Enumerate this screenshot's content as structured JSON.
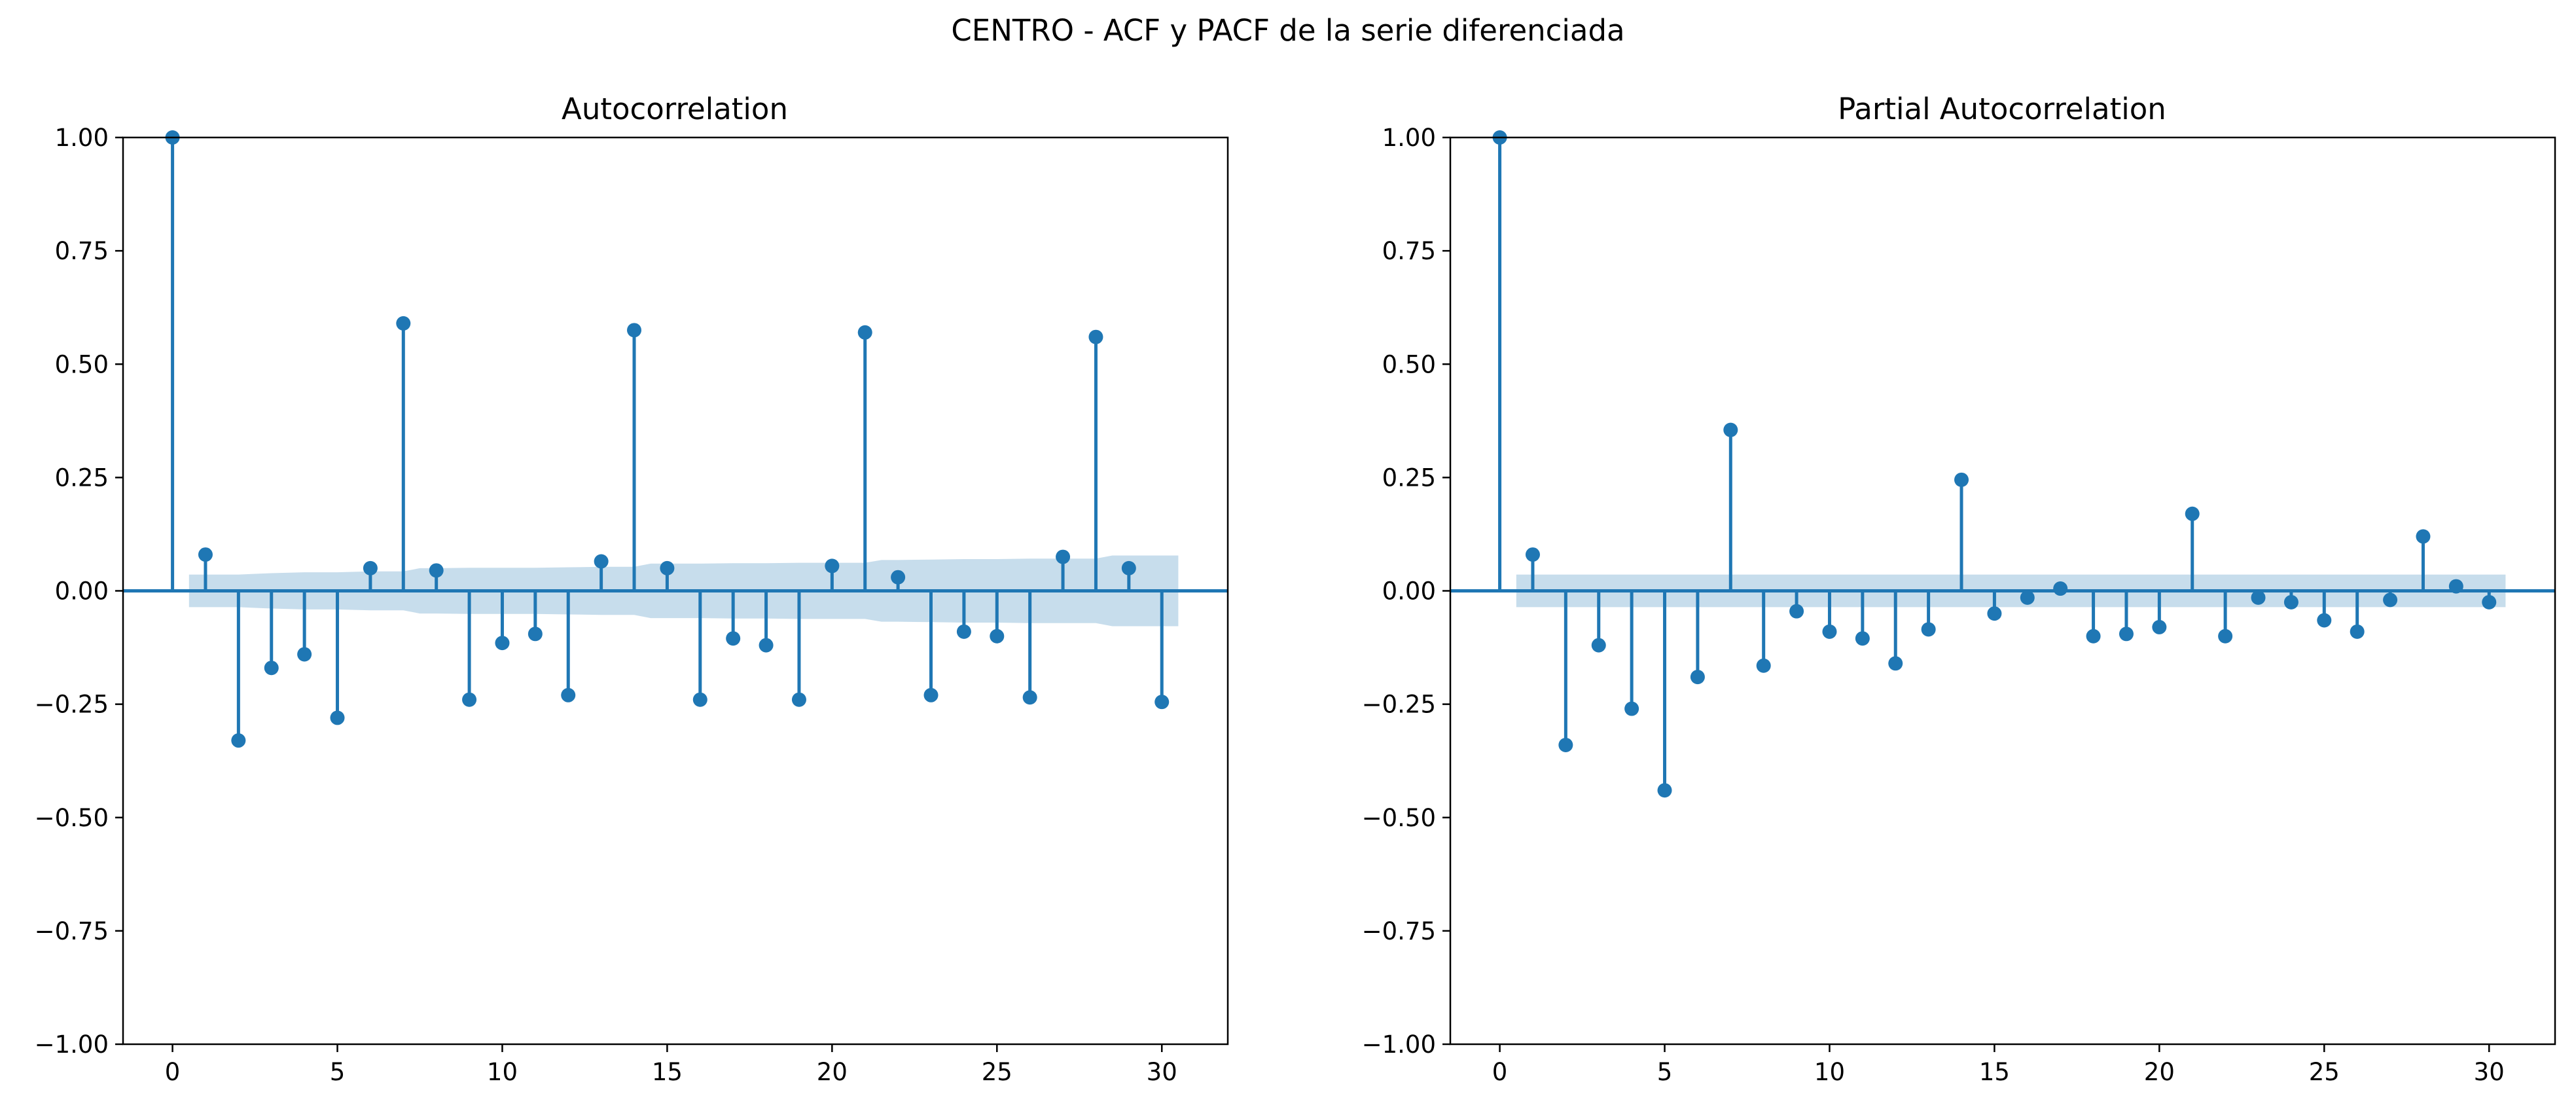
{
  "figure_title": "CENTRO - ACF y PACF de la serie diferenciada",
  "colors": {
    "series": "#1f77b4",
    "confidence_band": "#1f77b4"
  },
  "chart_data": [
    {
      "type": "stem",
      "title": "Autocorrelation",
      "xlabel": "",
      "ylabel": "",
      "xlim": [
        -1.5,
        32
      ],
      "ylim": [
        -1,
        1
      ],
      "xticks": [
        0,
        5,
        10,
        15,
        20,
        25,
        30
      ],
      "xtick_labels": [
        "0",
        "5",
        "10",
        "15",
        "20",
        "25",
        "30"
      ],
      "yticks": [
        -1,
        -0.75,
        -0.5,
        -0.25,
        0,
        0.25,
        0.5,
        0.75,
        1
      ],
      "ytick_labels": [
        "−1.00",
        "−0.75",
        "−0.50",
        "−0.25",
        "0.00",
        "0.25",
        "0.50",
        "0.75",
        "1.00"
      ],
      "lags": [
        0,
        1,
        2,
        3,
        4,
        5,
        6,
        7,
        8,
        9,
        10,
        11,
        12,
        13,
        14,
        15,
        16,
        17,
        18,
        19,
        20,
        21,
        22,
        23,
        24,
        25,
        26,
        27,
        28,
        29,
        30
      ],
      "values": [
        1.0,
        0.08,
        -0.33,
        -0.17,
        -0.14,
        -0.28,
        0.05,
        0.59,
        0.045,
        -0.24,
        -0.115,
        -0.095,
        -0.23,
        0.065,
        0.575,
        0.05,
        -0.24,
        -0.105,
        -0.12,
        -0.24,
        0.055,
        0.57,
        0.03,
        -0.23,
        -0.09,
        -0.1,
        -0.235,
        0.075,
        0.56,
        0.05,
        -0.245
      ],
      "confidence_band": {
        "lags": [
          0.5,
          1,
          2,
          3,
          4,
          5,
          6,
          7,
          7.5,
          8,
          9,
          10,
          11,
          12,
          13,
          14,
          14.5,
          15,
          16,
          17,
          18,
          19,
          20,
          21,
          21.5,
          22,
          23,
          24,
          25,
          26,
          27,
          28,
          28.5,
          29,
          30,
          30.5
        ],
        "upper": [
          0.036,
          0.036,
          0.036,
          0.039,
          0.041,
          0.041,
          0.043,
          0.043,
          0.05,
          0.05,
          0.051,
          0.051,
          0.051,
          0.052,
          0.053,
          0.053,
          0.06,
          0.06,
          0.06,
          0.061,
          0.061,
          0.062,
          0.062,
          0.062,
          0.068,
          0.068,
          0.069,
          0.07,
          0.07,
          0.071,
          0.071,
          0.071,
          0.078,
          0.078,
          0.078,
          0.078
        ]
      }
    },
    {
      "type": "stem",
      "title": "Partial Autocorrelation",
      "xlabel": "",
      "ylabel": "",
      "xlim": [
        -1.5,
        32
      ],
      "ylim": [
        -1,
        1
      ],
      "xticks": [
        0,
        5,
        10,
        15,
        20,
        25,
        30
      ],
      "xtick_labels": [
        "0",
        "5",
        "10",
        "15",
        "20",
        "25",
        "30"
      ],
      "yticks": [
        -1,
        -0.75,
        -0.5,
        -0.25,
        0,
        0.25,
        0.5,
        0.75,
        1
      ],
      "ytick_labels": [
        "−1.00",
        "−0.75",
        "−0.50",
        "−0.25",
        "0.00",
        "0.25",
        "0.50",
        "0.75",
        "1.00"
      ],
      "lags": [
        0,
        1,
        2,
        3,
        4,
        5,
        6,
        7,
        8,
        9,
        10,
        11,
        12,
        13,
        14,
        15,
        16,
        17,
        18,
        19,
        20,
        21,
        22,
        23,
        24,
        25,
        26,
        27,
        28,
        29,
        30
      ],
      "values": [
        1.0,
        0.08,
        -0.34,
        -0.12,
        -0.26,
        -0.44,
        -0.19,
        0.355,
        -0.165,
        -0.045,
        -0.09,
        -0.105,
        -0.16,
        -0.085,
        0.245,
        -0.05,
        -0.015,
        0.005,
        -0.1,
        -0.095,
        -0.08,
        0.17,
        -0.1,
        -0.015,
        -0.025,
        -0.065,
        -0.09,
        -0.02,
        0.12,
        0.01,
        -0.025
      ],
      "confidence_band": {
        "lags": [
          0.5,
          30.5
        ],
        "upper": [
          0.036,
          0.036
        ]
      }
    }
  ]
}
